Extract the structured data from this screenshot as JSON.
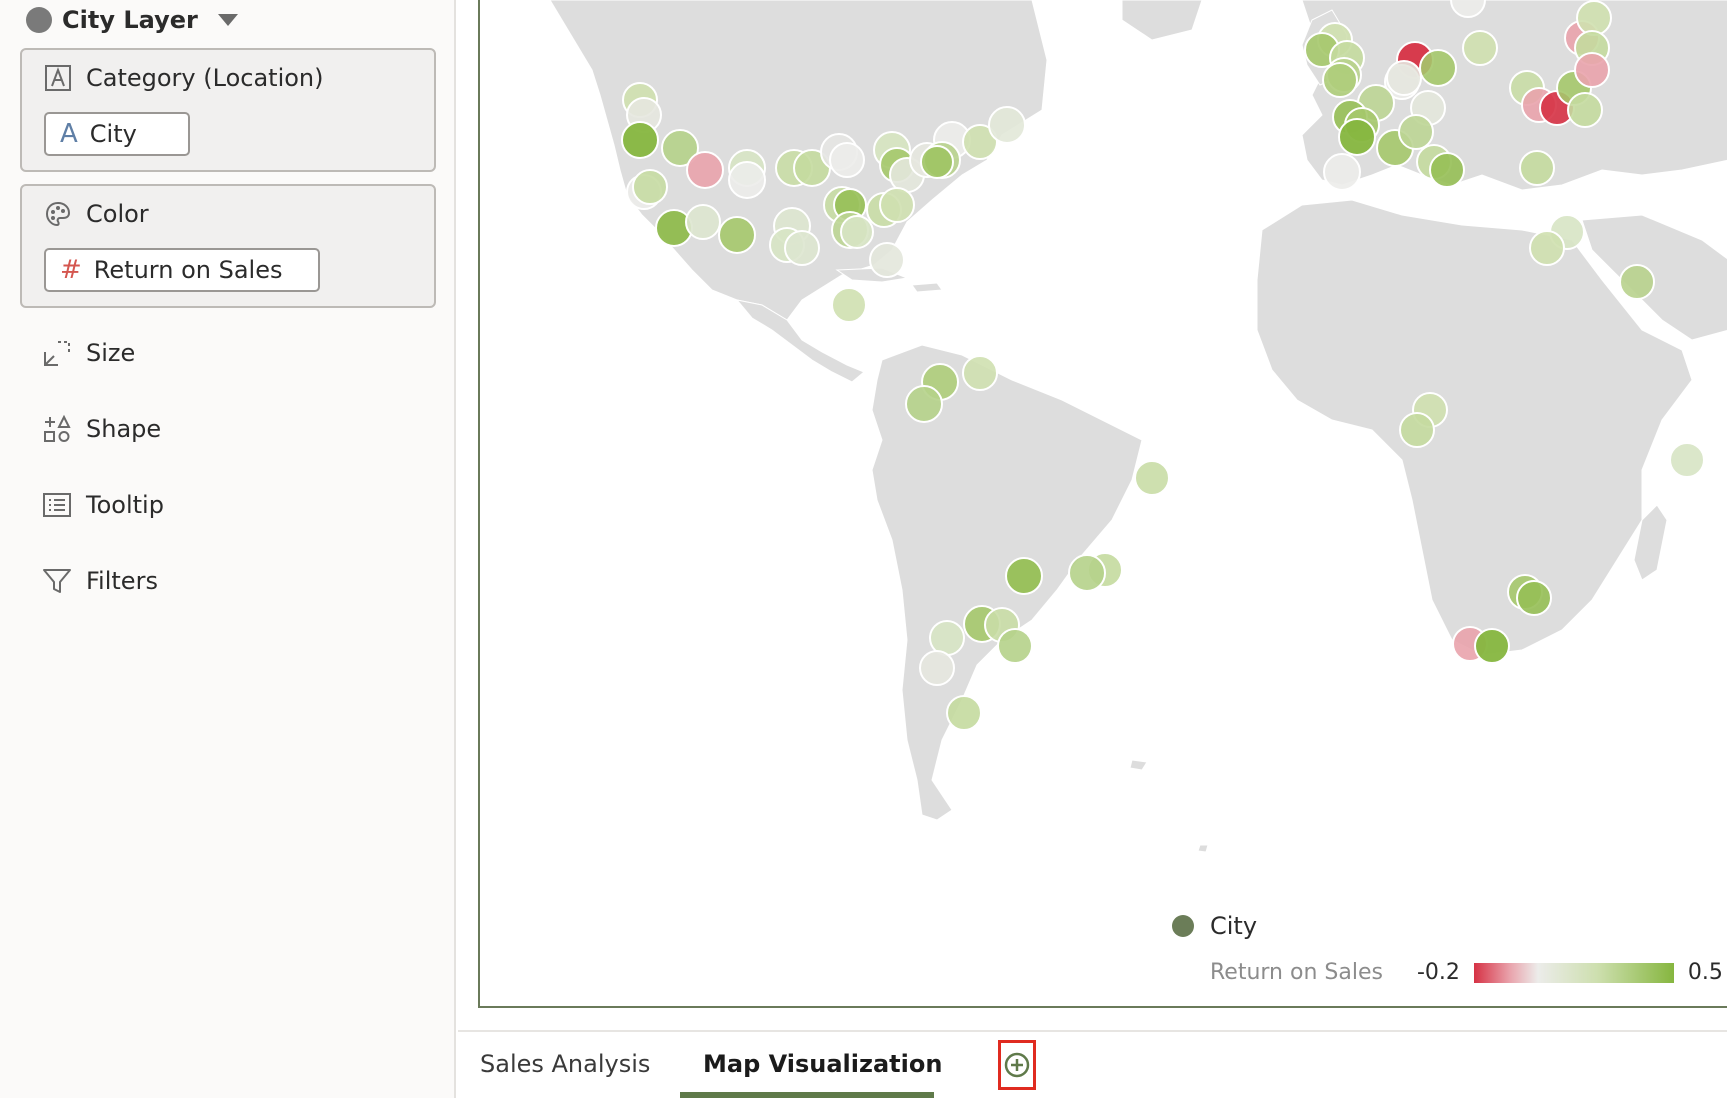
{
  "layer": {
    "title": "City Layer"
  },
  "grammar": {
    "category": {
      "label": "Category (Location)",
      "pill": "City"
    },
    "color": {
      "label": "Color",
      "pill": "Return on Sales"
    },
    "items": [
      {
        "label": "Size"
      },
      {
        "label": "Shape"
      },
      {
        "label": "Tooltip"
      },
      {
        "label": "Filters"
      }
    ]
  },
  "legend": {
    "layer_name": "City",
    "measure": "Return on Sales",
    "min": "-0.2",
    "max": "0.5"
  },
  "tabs": [
    {
      "label": "Sales Analysis",
      "active": false
    },
    {
      "label": "Map Visualization",
      "active": true
    }
  ],
  "colors": {
    "accent": "#5f7a4a",
    "negative": "#d63245",
    "positive": "#86b63f",
    "land": "#dddddd"
  },
  "icons": [
    "attribute-icon",
    "palette-icon",
    "number-icon",
    "size-icon",
    "shape-icon",
    "tooltip-icon",
    "filter-icon",
    "add-canvas-icon"
  ]
}
